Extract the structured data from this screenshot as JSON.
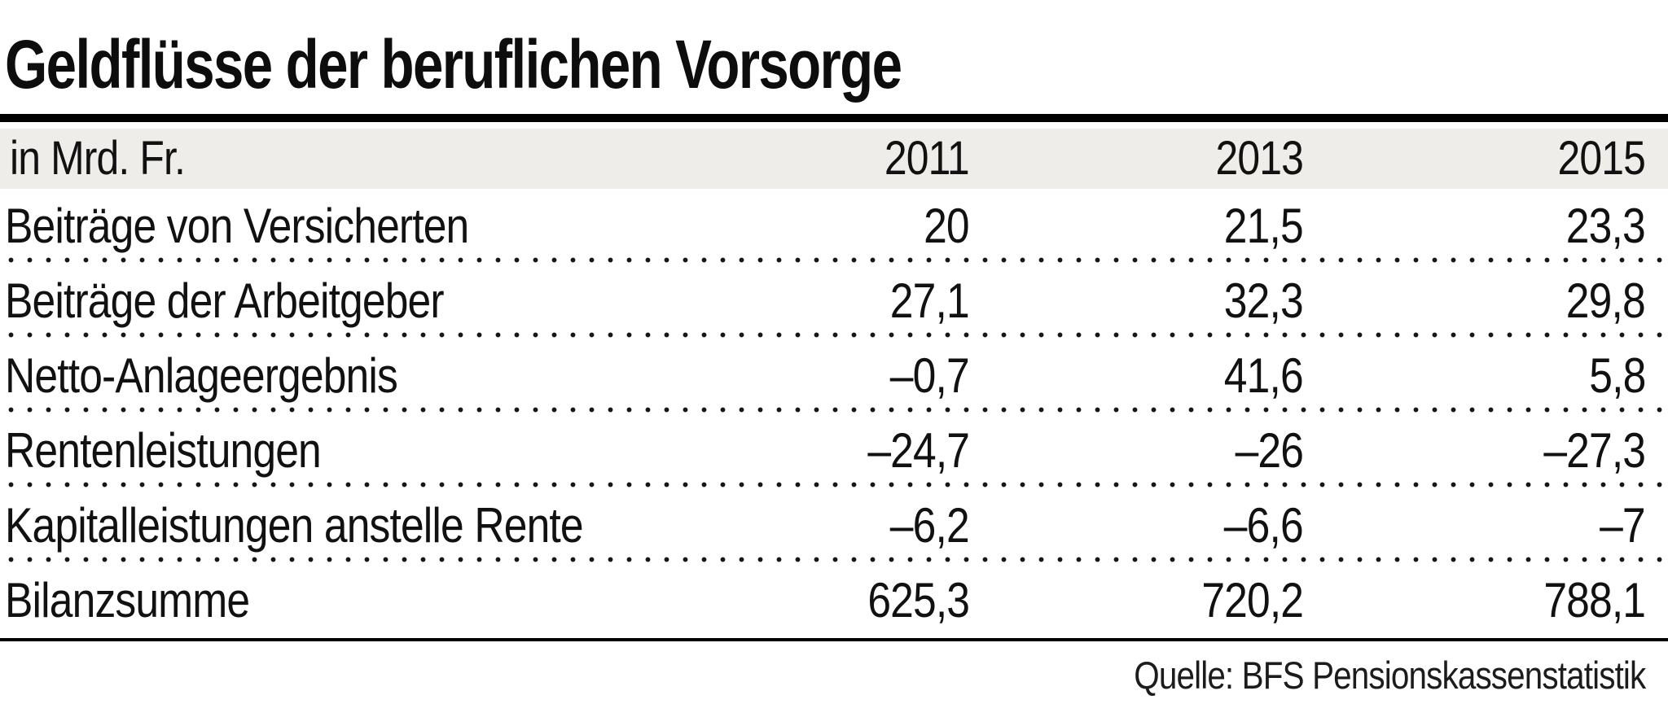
{
  "title": "Geldflüsse der beruflichen Vorsorge",
  "table": {
    "unit_label": "in Mrd. Fr.",
    "columns": [
      "2011",
      "2013",
      "2015"
    ],
    "rows": [
      {
        "label": "Beiträge von Versicherten",
        "values": [
          "20",
          "21,5",
          "23,3"
        ]
      },
      {
        "label": "Beiträge der Arbeitgeber",
        "values": [
          "27,1",
          "32,3",
          "29,8"
        ]
      },
      {
        "label": "Netto-Anlageergebnis",
        "values": [
          "–0,7",
          "41,6",
          "5,8"
        ]
      },
      {
        "label": "Rentenleistungen",
        "values": [
          "–24,7",
          "–26",
          "–27,3"
        ]
      },
      {
        "label": "Kapitalleistungen anstelle Rente",
        "values": [
          "–6,2",
          "–6,6",
          "–7"
        ]
      },
      {
        "label": "Bilanzsumme",
        "values": [
          "625,3",
          "720,2",
          "788,1"
        ]
      }
    ]
  },
  "source": "Quelle: BFS Pensionskassenstatistik",
  "colors": {
    "header_band_bg": "#eeede9",
    "rule": "#000000",
    "text": "#111111"
  },
  "chart_data": {
    "type": "table",
    "title": "Geldflüsse der beruflichen Vorsorge",
    "unit": "in Mrd. Fr.",
    "categories": [
      "2011",
      "2013",
      "2015"
    ],
    "series": [
      {
        "name": "Beiträge von Versicherten",
        "values": [
          20,
          21.5,
          23.3
        ]
      },
      {
        "name": "Beiträge der Arbeitgeber",
        "values": [
          27.1,
          32.3,
          29.8
        ]
      },
      {
        "name": "Netto-Anlageergebnis",
        "values": [
          -0.7,
          41.6,
          5.8
        ]
      },
      {
        "name": "Rentenleistungen",
        "values": [
          -24.7,
          -26,
          -27.3
        ]
      },
      {
        "name": "Kapitalleistungen anstelle Rente",
        "values": [
          -6.2,
          -6.6,
          -7
        ]
      },
      {
        "name": "Bilanzsumme",
        "values": [
          625.3,
          720.2,
          788.1
        ]
      }
    ],
    "source": "Quelle: BFS Pensionskassenstatistik"
  }
}
